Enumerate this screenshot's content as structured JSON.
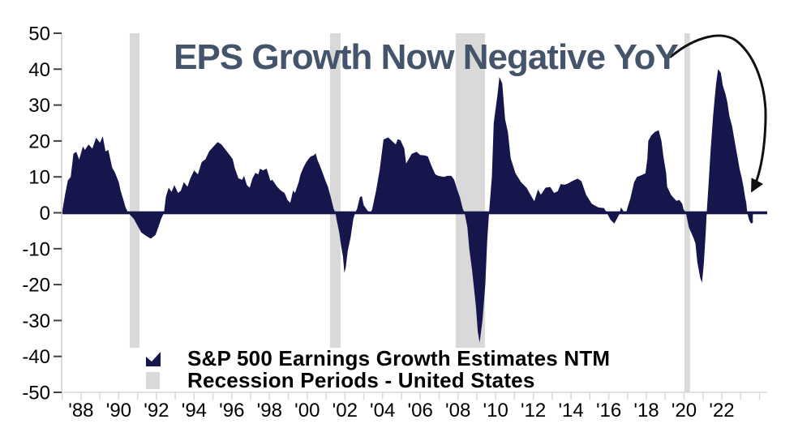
{
  "title": "EPS Growth Now Negative YoY",
  "legend": {
    "series_label": "S&P 500 Earnings Growth Estimates NTM",
    "recession_label": "Recession Periods - United States"
  },
  "colors": {
    "series": "#16164d",
    "recession": "#d9d9d9",
    "title_text": "#44546a",
    "axis_line": "#d9d9d9",
    "tick_mark": "#404040",
    "tick_text": "#000000",
    "arrow": "#111111",
    "background": "#ffffff"
  },
  "chart_data": {
    "type": "area",
    "title": "EPS Growth Now Negative YoY",
    "xlabel": "",
    "ylabel": "",
    "grid": false,
    "legend_position": "bottom-left-inside",
    "annotation": "hand-drawn arrow from title to latest negative data point",
    "ylim": [
      -50,
      50
    ],
    "y_ticks": [
      50,
      40,
      30,
      20,
      10,
      0,
      -10,
      -20,
      -30,
      -40,
      -50
    ],
    "x_range": [
      1986.97,
      2024.41
    ],
    "x_ticks": [
      {
        "year": 1988,
        "label": "'88"
      },
      {
        "year": 1990,
        "label": "'90"
      },
      {
        "year": 1992,
        "label": "'92"
      },
      {
        "year": 1994,
        "label": "'94"
      },
      {
        "year": 1996,
        "label": "'96"
      },
      {
        "year": 1998,
        "label": "'98"
      },
      {
        "year": 2000,
        "label": "'00"
      },
      {
        "year": 2002,
        "label": "'02"
      },
      {
        "year": 2004,
        "label": "'04"
      },
      {
        "year": 2006,
        "label": "'06"
      },
      {
        "year": 2008,
        "label": "'08"
      },
      {
        "year": 2010,
        "label": "'10"
      },
      {
        "year": 2012,
        "label": "'12"
      },
      {
        "year": 2014,
        "label": "'14"
      },
      {
        "year": 2016,
        "label": "'16"
      },
      {
        "year": 2018,
        "label": "'18"
      },
      {
        "year": 2020,
        "label": "'20"
      },
      {
        "year": 2022,
        "label": "'22"
      }
    ],
    "recession_periods": [
      [
        1990.58,
        1991.1
      ],
      [
        2001.21,
        2001.77
      ],
      [
        2007.88,
        2009.43
      ],
      [
        2020.01,
        2020.31
      ]
    ],
    "series": [
      {
        "name": "S&P 500 Earnings Growth Estimates NTM",
        "points": [
          [
            1987.0,
            0.3
          ],
          [
            1987.15,
            5
          ],
          [
            1987.3,
            9
          ],
          [
            1987.45,
            10
          ],
          [
            1987.6,
            16.5
          ],
          [
            1987.75,
            17
          ],
          [
            1987.9,
            14.8
          ],
          [
            1988.1,
            18.5
          ],
          [
            1988.2,
            17.5
          ],
          [
            1988.4,
            19
          ],
          [
            1988.6,
            17.9
          ],
          [
            1988.8,
            20.9
          ],
          [
            1989.0,
            19.5
          ],
          [
            1989.15,
            21.3
          ],
          [
            1989.3,
            17.1
          ],
          [
            1989.45,
            17.5
          ],
          [
            1989.65,
            12.6
          ],
          [
            1989.8,
            11.2
          ],
          [
            1990.0,
            8.5
          ],
          [
            1990.1,
            6.2
          ],
          [
            1990.25,
            3.6
          ],
          [
            1990.35,
            1.7
          ],
          [
            1990.5,
            0
          ],
          [
            1990.8,
            -1.7
          ],
          [
            1991.0,
            -3.6
          ],
          [
            1991.2,
            -5.5
          ],
          [
            1991.5,
            -6.6
          ],
          [
            1991.7,
            -7.2
          ],
          [
            1991.95,
            -6.2
          ],
          [
            1992.1,
            -4
          ],
          [
            1992.25,
            -1.7
          ],
          [
            1992.4,
            0
          ],
          [
            1992.5,
            4.4
          ],
          [
            1992.65,
            7
          ],
          [
            1992.8,
            5.8
          ],
          [
            1992.95,
            7.7
          ],
          [
            1993.15,
            5.5
          ],
          [
            1993.3,
            6.2
          ],
          [
            1993.45,
            8.5
          ],
          [
            1993.65,
            7.3
          ],
          [
            1993.8,
            9.6
          ],
          [
            1994.0,
            11.8
          ],
          [
            1994.2,
            10.7
          ],
          [
            1994.4,
            14.1
          ],
          [
            1994.6,
            14.9
          ],
          [
            1994.8,
            17.1
          ],
          [
            1995.05,
            18.6
          ],
          [
            1995.25,
            19.7
          ],
          [
            1995.45,
            19
          ],
          [
            1995.9,
            16
          ],
          [
            1996.05,
            14.9
          ],
          [
            1996.15,
            12.6
          ],
          [
            1996.35,
            9.6
          ],
          [
            1996.55,
            9.2
          ],
          [
            1996.65,
            10.3
          ],
          [
            1996.8,
            7.7
          ],
          [
            1996.95,
            7
          ],
          [
            1997.1,
            9.6
          ],
          [
            1997.25,
            11.1
          ],
          [
            1997.4,
            10.7
          ],
          [
            1997.5,
            12.3
          ],
          [
            1997.65,
            11.8
          ],
          [
            1997.85,
            12.3
          ],
          [
            1998.05,
            8.9
          ],
          [
            1998.15,
            9.2
          ],
          [
            1998.4,
            7.3
          ],
          [
            1998.6,
            6.2
          ],
          [
            1998.8,
            5.5
          ],
          [
            1998.95,
            3.6
          ],
          [
            1999.1,
            2.8
          ],
          [
            1999.25,
            6.2
          ],
          [
            1999.35,
            5.5
          ],
          [
            1999.55,
            8.5
          ],
          [
            1999.65,
            10.7
          ],
          [
            1999.8,
            12.6
          ],
          [
            1999.95,
            14.1
          ],
          [
            2000.1,
            15.2
          ],
          [
            2000.2,
            15.7
          ],
          [
            2000.35,
            16
          ],
          [
            2000.45,
            16.6
          ],
          [
            2000.55,
            14.6
          ],
          [
            2000.65,
            13.4
          ],
          [
            2000.8,
            11.4
          ],
          [
            2000.95,
            9.2
          ],
          [
            2001.1,
            7.3
          ],
          [
            2001.25,
            4.4
          ],
          [
            2001.4,
            1.2
          ],
          [
            2001.5,
            0
          ],
          [
            2001.55,
            -1.7
          ],
          [
            2001.7,
            -5.5
          ],
          [
            2001.8,
            -9.2
          ],
          [
            2001.9,
            -12.2
          ],
          [
            2001.97,
            -16.7
          ],
          [
            2002.05,
            -15.2
          ],
          [
            2002.15,
            -10.7
          ],
          [
            2002.3,
            -7
          ],
          [
            2002.45,
            -1.7
          ],
          [
            2002.55,
            0
          ],
          [
            2002.65,
            1.2
          ],
          [
            2002.8,
            4.4
          ],
          [
            2002.9,
            4.6
          ],
          [
            2003.0,
            2.1
          ],
          [
            2003.2,
            0.6
          ],
          [
            2003.35,
            -0.3
          ],
          [
            2003.45,
            1
          ],
          [
            2003.65,
            6
          ],
          [
            2003.85,
            12
          ],
          [
            2004.05,
            20.4
          ],
          [
            2004.3,
            21
          ],
          [
            2004.5,
            20
          ],
          [
            2004.7,
            19
          ],
          [
            2004.8,
            20.5
          ],
          [
            2004.95,
            20.2
          ],
          [
            2005.15,
            17.9
          ],
          [
            2005.25,
            13.7
          ],
          [
            2005.55,
            16.4
          ],
          [
            2005.8,
            17
          ],
          [
            2006.0,
            16.1
          ],
          [
            2006.2,
            16
          ],
          [
            2006.4,
            15.7
          ],
          [
            2006.6,
            13
          ],
          [
            2006.8,
            10.7
          ],
          [
            2006.95,
            10.3
          ],
          [
            2007.25,
            10
          ],
          [
            2007.45,
            10.3
          ],
          [
            2007.65,
            10.3
          ],
          [
            2007.8,
            9.2
          ],
          [
            2007.95,
            6.6
          ],
          [
            2008.1,
            4.4
          ],
          [
            2008.25,
            1.2
          ],
          [
            2008.35,
            0
          ],
          [
            2008.5,
            -4
          ],
          [
            2008.6,
            -10
          ],
          [
            2008.75,
            -16
          ],
          [
            2008.95,
            -26
          ],
          [
            2009.05,
            -33
          ],
          [
            2009.15,
            -36.2
          ],
          [
            2009.3,
            -30
          ],
          [
            2009.45,
            -20
          ],
          [
            2009.55,
            -8
          ],
          [
            2009.65,
            0
          ],
          [
            2009.8,
            10
          ],
          [
            2009.9,
            25
          ],
          [
            2010.1,
            33
          ],
          [
            2010.2,
            37.8
          ],
          [
            2010.35,
            36
          ],
          [
            2010.5,
            26
          ],
          [
            2010.65,
            22.4
          ],
          [
            2010.8,
            15.2
          ],
          [
            2011.05,
            11
          ],
          [
            2011.35,
            8.5
          ],
          [
            2011.65,
            6.9
          ],
          [
            2011.85,
            5
          ],
          [
            2012.05,
            3.2
          ],
          [
            2012.25,
            6.5
          ],
          [
            2012.4,
            5
          ],
          [
            2012.65,
            7
          ],
          [
            2012.9,
            7.2
          ],
          [
            2013.1,
            5.5
          ],
          [
            2013.3,
            6
          ],
          [
            2013.45,
            8
          ],
          [
            2013.65,
            7.8
          ],
          [
            2013.85,
            8.2
          ],
          [
            2014.05,
            8.8
          ],
          [
            2014.35,
            9.5
          ],
          [
            2014.55,
            8.8
          ],
          [
            2014.8,
            5
          ],
          [
            2015.1,
            2.5
          ],
          [
            2015.45,
            1.5
          ],
          [
            2015.75,
            1.3
          ],
          [
            2015.9,
            0
          ],
          [
            2016.1,
            -2
          ],
          [
            2016.3,
            -3
          ],
          [
            2016.55,
            -0.5
          ],
          [
            2016.65,
            1.5
          ],
          [
            2016.8,
            0.3
          ],
          [
            2016.9,
            -0.5
          ],
          [
            2017.0,
            1.5
          ],
          [
            2017.15,
            4
          ],
          [
            2017.35,
            8.5
          ],
          [
            2017.5,
            10
          ],
          [
            2017.75,
            10.5
          ],
          [
            2017.95,
            11
          ],
          [
            2018.05,
            15
          ],
          [
            2018.1,
            20
          ],
          [
            2018.25,
            21.5
          ],
          [
            2018.45,
            22.5
          ],
          [
            2018.65,
            23
          ],
          [
            2018.8,
            20
          ],
          [
            2018.9,
            15.7
          ],
          [
            2019.05,
            11
          ],
          [
            2019.1,
            7.3
          ],
          [
            2019.3,
            5
          ],
          [
            2019.4,
            4.4
          ],
          [
            2019.6,
            3.3
          ],
          [
            2019.75,
            3.6
          ],
          [
            2019.9,
            2.5
          ],
          [
            2019.97,
            1
          ],
          [
            2020.1,
            0
          ],
          [
            2020.25,
            -4
          ],
          [
            2020.5,
            -7
          ],
          [
            2020.6,
            -8.5
          ],
          [
            2020.7,
            -13.7
          ],
          [
            2020.85,
            -18
          ],
          [
            2020.95,
            -19.5
          ],
          [
            2021.05,
            -14
          ],
          [
            2021.15,
            -5.5
          ],
          [
            2021.2,
            0
          ],
          [
            2021.3,
            8
          ],
          [
            2021.4,
            17
          ],
          [
            2021.55,
            27.6
          ],
          [
            2021.7,
            36
          ],
          [
            2021.8,
            40
          ],
          [
            2021.95,
            39
          ],
          [
            2022.05,
            35.5
          ],
          [
            2022.2,
            33
          ],
          [
            2022.3,
            30.6
          ],
          [
            2022.4,
            27
          ],
          [
            2022.55,
            24
          ],
          [
            2022.65,
            21
          ],
          [
            2022.75,
            18
          ],
          [
            2022.85,
            15.2
          ],
          [
            2022.95,
            12
          ],
          [
            2023.05,
            10
          ],
          [
            2023.15,
            7.3
          ],
          [
            2023.25,
            4
          ],
          [
            2023.3,
            2.8
          ],
          [
            2023.35,
            0
          ],
          [
            2023.45,
            -2
          ],
          [
            2023.55,
            -3
          ],
          [
            2023.65,
            -2.8
          ]
        ]
      }
    ]
  }
}
